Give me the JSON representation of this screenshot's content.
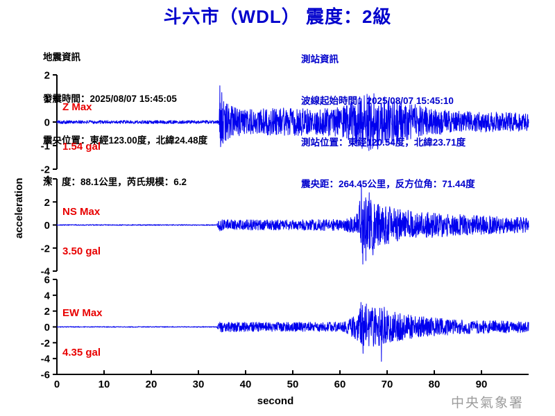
{
  "title": "斗六市（WDL） 震度：2級",
  "earthquake_info": {
    "lines": [
      "地震資訊",
      "發震時間：2025/08/07 15:45:05",
      "震央位置：東經123.00度，北緯24.48度",
      "深　度：88.1公里，芮氏規模：6.2"
    ]
  },
  "station_info": {
    "lines": [
      "測站資訊",
      "波線起始時間：2025/08/07 15:45:10",
      "測站位置：東經120.54度，北緯23.71度",
      "震央距：264.45公里，反方位角：71.44度"
    ]
  },
  "watermark": "中央氣象署",
  "colors": {
    "title_blue": "#0000CC",
    "info_blue": "#0000CC",
    "trace_blue": "#0101EE",
    "max_red": "#E80000",
    "axis_black": "#000000",
    "watermark_gray": "#9C9C9C"
  },
  "chart_data": {
    "type": "line",
    "title": "斗六市（WDL） 震度：2級",
    "xlabel": "second",
    "ylabel": "acceleration",
    "x_range": [
      0,
      100
    ],
    "xticks": [
      0,
      10,
      20,
      30,
      40,
      50,
      60,
      70,
      80,
      90
    ],
    "grid": false,
    "p_arrival_s": 34.5,
    "s_arrival_s": 64.0,
    "panels": [
      {
        "component": "Z",
        "max_label": "Z Max",
        "max_value_label": "1.54 gal",
        "max_gal": 1.54,
        "ylim": [
          -2,
          2
        ],
        "yticks": [
          2,
          1,
          0,
          -1,
          -2
        ],
        "envelope_gal": [
          [
            0,
            0.07
          ],
          [
            34.3,
            0.07
          ],
          [
            34.6,
            1.1
          ],
          [
            36.5,
            0.7
          ],
          [
            40,
            0.55
          ],
          [
            48,
            0.6
          ],
          [
            56,
            0.55
          ],
          [
            61,
            0.7
          ],
          [
            63.5,
            1.05
          ],
          [
            66.5,
            1.25
          ],
          [
            69.5,
            1.1
          ],
          [
            72,
            0.9
          ],
          [
            76,
            0.75
          ],
          [
            80,
            0.55
          ],
          [
            86,
            0.45
          ],
          [
            99.8,
            0.4
          ]
        ],
        "spikes_gal": [
          [
            34.55,
            1.54
          ],
          [
            34.7,
            -1.05
          ],
          [
            34.95,
            1.25
          ],
          [
            35.2,
            -0.9
          ]
        ]
      },
      {
        "component": "NS",
        "max_label": "NS Max",
        "max_value_label": "3.50 gal",
        "max_gal": 3.5,
        "ylim": [
          -4,
          4
        ],
        "yticks": [
          4,
          2,
          0,
          -2,
          -4
        ],
        "envelope_gal": [
          [
            0,
            0.04
          ],
          [
            33.9,
            0.04
          ],
          [
            34.4,
            0.55
          ],
          [
            37,
            0.45
          ],
          [
            50,
            0.45
          ],
          [
            61,
            0.5
          ],
          [
            63.5,
            0.9
          ],
          [
            64.5,
            2.6
          ],
          [
            66,
            2.3
          ],
          [
            69,
            1.8
          ],
          [
            73,
            1.35
          ],
          [
            78,
            1.15
          ],
          [
            84,
            0.95
          ],
          [
            91,
            0.8
          ],
          [
            99.8,
            0.65
          ]
        ],
        "spikes_gal": [
          [
            64.55,
            3.5
          ],
          [
            64.85,
            -3.4
          ],
          [
            65.5,
            -3.1
          ],
          [
            66.2,
            2.8
          ],
          [
            67.0,
            -2.6
          ]
        ]
      },
      {
        "component": "EW",
        "max_label": "EW Max",
        "max_value_label": "4.35 gal",
        "max_gal": 4.35,
        "ylim": [
          -6,
          6
        ],
        "yticks": [
          6,
          4,
          2,
          0,
          -2,
          -4,
          -6
        ],
        "envelope_gal": [
          [
            0,
            0.05
          ],
          [
            33.9,
            0.05
          ],
          [
            34.5,
            0.7
          ],
          [
            38,
            0.6
          ],
          [
            55,
            0.6
          ],
          [
            61,
            0.65
          ],
          [
            63.5,
            1.6
          ],
          [
            64.8,
            3.0
          ],
          [
            66.5,
            2.5
          ],
          [
            68.5,
            2.4
          ],
          [
            70.5,
            2.0
          ],
          [
            74,
            1.6
          ],
          [
            79,
            1.2
          ],
          [
            86,
            0.9
          ],
          [
            93,
            0.8
          ],
          [
            99.8,
            0.7
          ]
        ],
        "spikes_gal": [
          [
            64.45,
            3.1
          ],
          [
            64.9,
            -3.35
          ],
          [
            65.6,
            2.9
          ],
          [
            68.8,
            -4.35
          ],
          [
            69.4,
            2.5
          ]
        ]
      }
    ]
  }
}
